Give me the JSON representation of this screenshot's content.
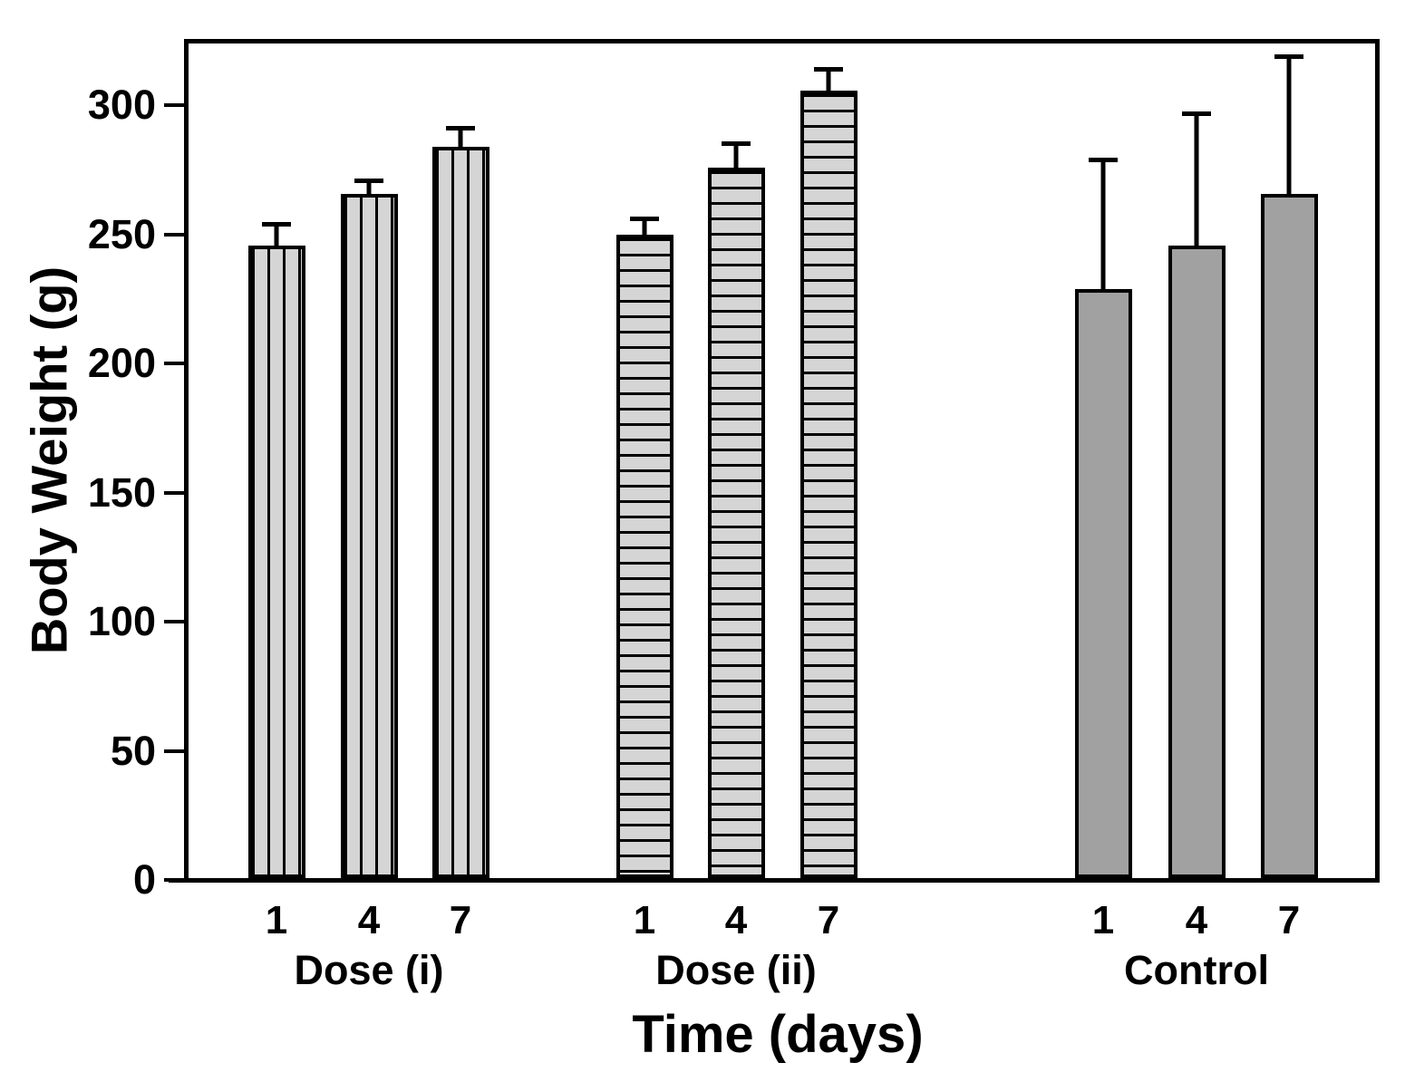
{
  "chart_data": {
    "type": "bar",
    "title": "",
    "xlabel": "Time (days)",
    "ylabel": "Body Weight (g)",
    "ylim": [
      0,
      324
    ],
    "yticks": [
      0,
      50,
      100,
      150,
      200,
      250,
      300
    ],
    "grid": false,
    "legend": null,
    "categories": [
      "1",
      "4",
      "7"
    ],
    "series": [
      {
        "name": "Dose (i)",
        "pattern": "vertical-stripes",
        "values": [
          245,
          265,
          283
        ],
        "errors_plus": [
          9,
          6,
          8
        ]
      },
      {
        "name": "Dose (ii)",
        "pattern": "horizontal-stripes",
        "values": [
          249,
          275,
          305
        ],
        "errors_plus": [
          7,
          10,
          9
        ]
      },
      {
        "name": "Control",
        "pattern": "solid",
        "values": [
          228,
          245,
          265
        ],
        "errors_plus": [
          51,
          52,
          54
        ]
      }
    ],
    "colors": {
      "background": "#ffffff",
      "striped_bar_fill": "#d5d5d5",
      "solid_bar_fill": "#a1a1a1",
      "stroke": "#000000",
      "text": "#000000"
    }
  }
}
